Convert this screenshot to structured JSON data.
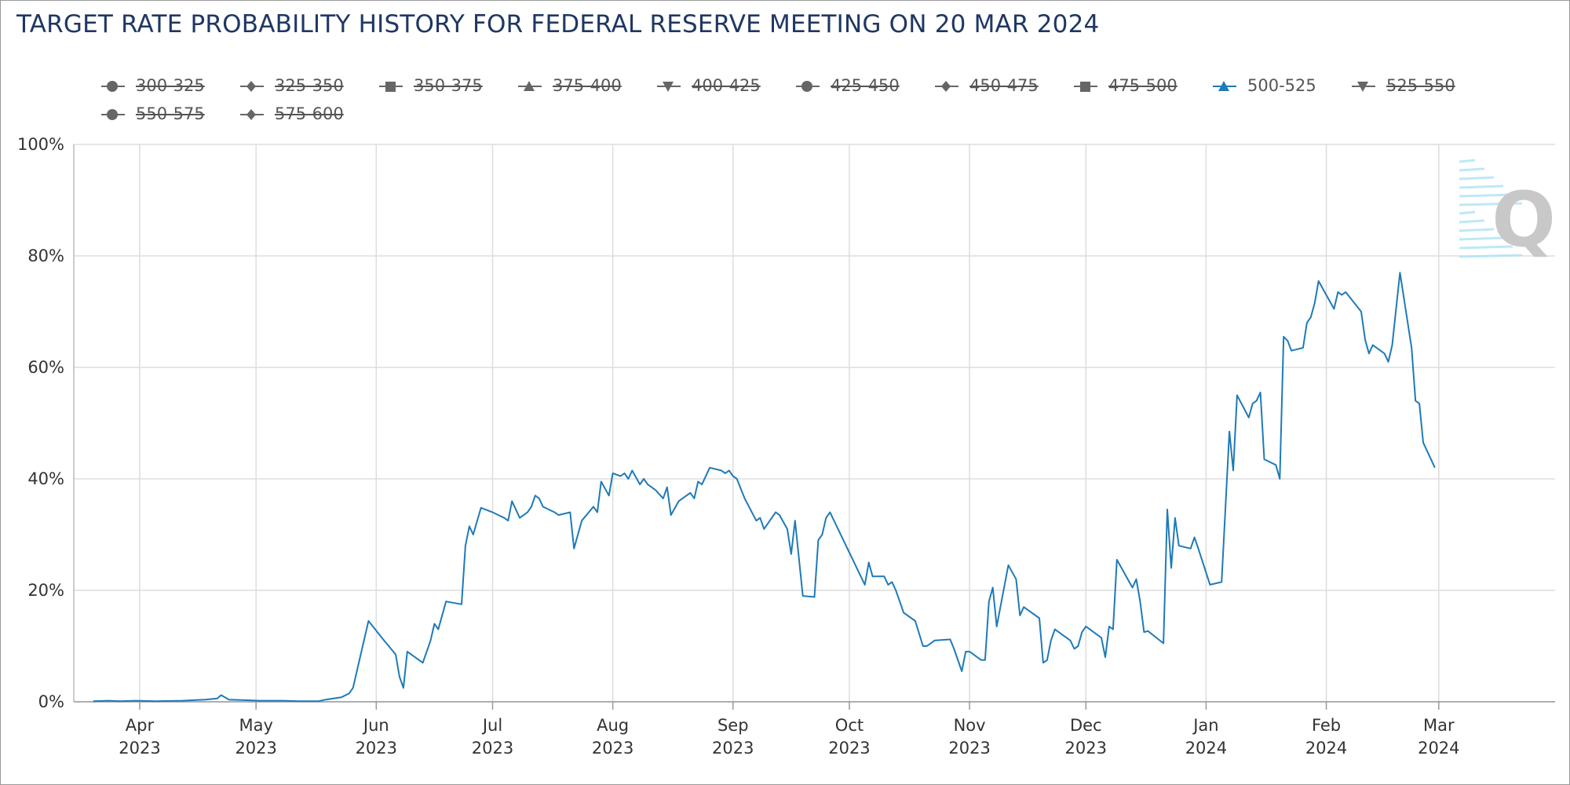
{
  "colors": {
    "title": "#1f3763",
    "series_active": "#1f7ab8",
    "legend_inactive": "#666666",
    "grid": "#dddddd",
    "watermark_arrows": "#aee3f5",
    "watermark_letter": "#c8c8c8"
  },
  "watermark": {
    "letter": "Q",
    "icon": "quikstrike-q-logo"
  },
  "legend": [
    {
      "label": "300-325",
      "marker": "circle",
      "active": false
    },
    {
      "label": "325-350",
      "marker": "diamond",
      "active": false
    },
    {
      "label": "350-375",
      "marker": "square",
      "active": false
    },
    {
      "label": "375-400",
      "marker": "triangle",
      "active": false
    },
    {
      "label": "400-425",
      "marker": "triangle-down",
      "active": false
    },
    {
      "label": "425-450",
      "marker": "circle",
      "active": false
    },
    {
      "label": "450-475",
      "marker": "diamond",
      "active": false
    },
    {
      "label": "475-500",
      "marker": "square",
      "active": false
    },
    {
      "label": "500-525",
      "marker": "triangle",
      "active": true
    },
    {
      "label": "525-550",
      "marker": "triangle-down",
      "active": false
    },
    {
      "label": "550-575",
      "marker": "circle",
      "active": false
    },
    {
      "label": "575-600",
      "marker": "diamond",
      "active": false
    }
  ],
  "chart_data": {
    "type": "line",
    "title": "TARGET RATE PROBABILITY HISTORY FOR FEDERAL RESERVE MEETING ON 20 MAR 2024",
    "xlabel": "",
    "ylabel": "",
    "ylim": [
      0,
      100
    ],
    "xlim": [
      "2023-03-15",
      "2024-03-31"
    ],
    "yticks": [
      0,
      20,
      40,
      60,
      80,
      100
    ],
    "ytick_labels": [
      "0%",
      "20%",
      "40%",
      "60%",
      "80%",
      "100%"
    ],
    "xticks": [
      {
        "date": "2023-04-01",
        "month": "Apr",
        "year": "2023"
      },
      {
        "date": "2023-05-01",
        "month": "May",
        "year": "2023"
      },
      {
        "date": "2023-06-01",
        "month": "Jun",
        "year": "2023"
      },
      {
        "date": "2023-07-01",
        "month": "Jul",
        "year": "2023"
      },
      {
        "date": "2023-08-01",
        "month": "Aug",
        "year": "2023"
      },
      {
        "date": "2023-09-01",
        "month": "Sep",
        "year": "2023"
      },
      {
        "date": "2023-10-01",
        "month": "Oct",
        "year": "2023"
      },
      {
        "date": "2023-11-01",
        "month": "Nov",
        "year": "2023"
      },
      {
        "date": "2023-12-01",
        "month": "Dec",
        "year": "2023"
      },
      {
        "date": "2024-01-01",
        "month": "Jan",
        "year": "2024"
      },
      {
        "date": "2024-02-01",
        "month": "Feb",
        "year": "2024"
      },
      {
        "date": "2024-03-01",
        "month": "Mar",
        "year": "2024"
      }
    ],
    "grid": true,
    "legend_position": "top",
    "series": [
      {
        "name": "500-525",
        "points": [
          [
            "2023-03-20",
            0.1
          ],
          [
            "2023-03-24",
            0.2
          ],
          [
            "2023-03-27",
            0.1
          ],
          [
            "2023-03-31",
            0.2
          ],
          [
            "2023-04-05",
            0.1
          ],
          [
            "2023-04-12",
            0.2
          ],
          [
            "2023-04-18",
            0.4
          ],
          [
            "2023-04-21",
            0.6
          ],
          [
            "2023-04-22",
            1.2
          ],
          [
            "2023-04-24",
            0.4
          ],
          [
            "2023-04-28",
            0.3
          ],
          [
            "2023-05-02",
            0.2
          ],
          [
            "2023-05-08",
            0.2
          ],
          [
            "2023-05-12",
            0.1
          ],
          [
            "2023-05-17",
            0.1
          ],
          [
            "2023-05-19",
            0.4
          ],
          [
            "2023-05-23",
            0.8
          ],
          [
            "2023-05-25",
            1.5
          ],
          [
            "2023-05-26",
            2.5
          ],
          [
            "2023-05-30",
            14.5
          ],
          [
            "2023-06-03",
            11.0
          ],
          [
            "2023-06-06",
            8.5
          ],
          [
            "2023-06-07",
            4.5
          ],
          [
            "2023-06-08",
            2.5
          ],
          [
            "2023-06-09",
            9.0
          ],
          [
            "2023-06-13",
            7.0
          ],
          [
            "2023-06-15",
            11.0
          ],
          [
            "2023-06-16",
            14.0
          ],
          [
            "2023-06-17",
            13.0
          ],
          [
            "2023-06-19",
            18.0
          ],
          [
            "2023-06-23",
            17.5
          ],
          [
            "2023-06-24",
            28.0
          ],
          [
            "2023-06-25",
            31.5
          ],
          [
            "2023-06-26",
            30.0
          ],
          [
            "2023-06-28",
            34.8
          ],
          [
            "2023-07-01",
            34.0
          ],
          [
            "2023-07-04",
            33.0
          ],
          [
            "2023-07-05",
            32.5
          ],
          [
            "2023-07-06",
            36.0
          ],
          [
            "2023-07-08",
            33.0
          ],
          [
            "2023-07-10",
            34.0
          ],
          [
            "2023-07-11",
            35.0
          ],
          [
            "2023-07-12",
            37.0
          ],
          [
            "2023-07-13",
            36.5
          ],
          [
            "2023-07-14",
            35.0
          ],
          [
            "2023-07-17",
            34.0
          ],
          [
            "2023-07-18",
            33.5
          ],
          [
            "2023-07-21",
            34.0
          ],
          [
            "2023-07-22",
            27.5
          ],
          [
            "2023-07-24",
            32.5
          ],
          [
            "2023-07-27",
            35.0
          ],
          [
            "2023-07-28",
            34.0
          ],
          [
            "2023-07-29",
            39.5
          ],
          [
            "2023-07-31",
            37.0
          ],
          [
            "2023-08-01",
            41.0
          ],
          [
            "2023-08-03",
            40.5
          ],
          [
            "2023-08-04",
            41.0
          ],
          [
            "2023-08-05",
            40.0
          ],
          [
            "2023-08-06",
            41.5
          ],
          [
            "2023-08-08",
            39.0
          ],
          [
            "2023-08-09",
            40.0
          ],
          [
            "2023-08-10",
            39.0
          ],
          [
            "2023-08-12",
            38.0
          ],
          [
            "2023-08-14",
            36.5
          ],
          [
            "2023-08-15",
            38.5
          ],
          [
            "2023-08-16",
            33.5
          ],
          [
            "2023-08-18",
            36.0
          ],
          [
            "2023-08-21",
            37.5
          ],
          [
            "2023-08-22",
            36.5
          ],
          [
            "2023-08-23",
            39.5
          ],
          [
            "2023-08-24",
            39.0
          ],
          [
            "2023-08-26",
            42.0
          ],
          [
            "2023-08-29",
            41.5
          ],
          [
            "2023-08-30",
            41.0
          ],
          [
            "2023-08-31",
            41.5
          ],
          [
            "2023-09-01",
            40.5
          ],
          [
            "2023-09-02",
            40.0
          ],
          [
            "2023-09-04",
            36.5
          ],
          [
            "2023-09-07",
            32.5
          ],
          [
            "2023-09-08",
            33.0
          ],
          [
            "2023-09-09",
            31.0
          ],
          [
            "2023-09-10",
            32.0
          ],
          [
            "2023-09-12",
            34.0
          ],
          [
            "2023-09-13",
            33.5
          ],
          [
            "2023-09-15",
            31.0
          ],
          [
            "2023-09-16",
            26.5
          ],
          [
            "2023-09-17",
            32.5
          ],
          [
            "2023-09-19",
            19.0
          ],
          [
            "2023-09-22",
            18.8
          ],
          [
            "2023-09-23",
            29.0
          ],
          [
            "2023-09-24",
            30.0
          ],
          [
            "2023-09-25",
            33.0
          ],
          [
            "2023-09-26",
            34.0
          ],
          [
            "2023-10-05",
            21.0
          ],
          [
            "2023-10-06",
            25.0
          ],
          [
            "2023-10-07",
            22.5
          ],
          [
            "2023-10-10",
            22.5
          ],
          [
            "2023-10-11",
            21.0
          ],
          [
            "2023-10-12",
            21.5
          ],
          [
            "2023-10-13",
            20.0
          ],
          [
            "2023-10-15",
            16.0
          ],
          [
            "2023-10-18",
            14.5
          ],
          [
            "2023-10-20",
            10.0
          ],
          [
            "2023-10-21",
            10.0
          ],
          [
            "2023-10-23",
            11.0
          ],
          [
            "2023-10-27",
            11.2
          ],
          [
            "2023-10-28",
            9.5
          ],
          [
            "2023-10-30",
            5.5
          ],
          [
            "2023-10-31",
            9.0
          ],
          [
            "2023-11-01",
            9.0
          ],
          [
            "2023-11-04",
            7.5
          ],
          [
            "2023-11-05",
            7.5
          ],
          [
            "2023-11-06",
            18.0
          ],
          [
            "2023-11-07",
            20.5
          ],
          [
            "2023-11-08",
            13.5
          ],
          [
            "2023-11-11",
            24.5
          ],
          [
            "2023-11-13",
            22.0
          ],
          [
            "2023-11-14",
            15.5
          ],
          [
            "2023-11-15",
            17.0
          ],
          [
            "2023-11-19",
            15.0
          ],
          [
            "2023-11-20",
            7.0
          ],
          [
            "2023-11-21",
            7.5
          ],
          [
            "2023-11-22",
            11.0
          ],
          [
            "2023-11-23",
            13.0
          ],
          [
            "2023-11-27",
            11.0
          ],
          [
            "2023-11-28",
            9.5
          ],
          [
            "2023-11-29",
            10.0
          ],
          [
            "2023-11-30",
            12.5
          ],
          [
            "2023-12-01",
            13.5
          ],
          [
            "2023-12-05",
            11.5
          ],
          [
            "2023-12-06",
            8.0
          ],
          [
            "2023-12-07",
            13.5
          ],
          [
            "2023-12-08",
            13.0
          ],
          [
            "2023-12-09",
            25.5
          ],
          [
            "2023-12-13",
            20.5
          ],
          [
            "2023-12-14",
            22.0
          ],
          [
            "2023-12-15",
            18.0
          ],
          [
            "2023-12-16",
            12.5
          ],
          [
            "2023-12-17",
            12.7
          ],
          [
            "2023-12-21",
            10.5
          ],
          [
            "2023-12-22",
            34.5
          ],
          [
            "2023-12-23",
            24.0
          ],
          [
            "2023-12-24",
            33.0
          ],
          [
            "2023-12-25",
            28.0
          ],
          [
            "2023-12-28",
            27.5
          ],
          [
            "2023-12-29",
            29.5
          ],
          [
            "2023-12-30",
            27.5
          ],
          [
            "2024-01-02",
            21.0
          ],
          [
            "2024-01-05",
            21.5
          ],
          [
            "2024-01-07",
            48.5
          ],
          [
            "2024-01-08",
            41.5
          ],
          [
            "2024-01-09",
            55.0
          ],
          [
            "2024-01-12",
            51.0
          ],
          [
            "2024-01-13",
            53.5
          ],
          [
            "2024-01-14",
            54.0
          ],
          [
            "2024-01-15",
            55.5
          ],
          [
            "2024-01-16",
            43.5
          ],
          [
            "2024-01-19",
            42.5
          ],
          [
            "2024-01-20",
            40.0
          ],
          [
            "2024-01-21",
            65.5
          ],
          [
            "2024-01-22",
            64.8
          ],
          [
            "2024-01-23",
            63.0
          ],
          [
            "2024-01-26",
            63.5
          ],
          [
            "2024-01-27",
            68.0
          ],
          [
            "2024-01-28",
            69.0
          ],
          [
            "2024-01-29",
            71.5
          ],
          [
            "2024-01-30",
            75.5
          ],
          [
            "2024-02-03",
            70.5
          ],
          [
            "2024-02-04",
            73.5
          ],
          [
            "2024-02-05",
            73.0
          ],
          [
            "2024-02-06",
            73.5
          ],
          [
            "2024-02-10",
            70.0
          ],
          [
            "2024-02-11",
            65.0
          ],
          [
            "2024-02-12",
            62.5
          ],
          [
            "2024-02-13",
            64.0
          ],
          [
            "2024-02-16",
            62.5
          ],
          [
            "2024-02-17",
            61.0
          ],
          [
            "2024-02-18",
            64.0
          ],
          [
            "2024-02-20",
            77.0
          ],
          [
            "2024-02-23",
            63.5
          ],
          [
            "2024-02-24",
            54.0
          ],
          [
            "2024-02-25",
            53.5
          ],
          [
            "2024-02-26",
            46.5
          ],
          [
            "2024-02-29",
            42.0
          ]
        ]
      }
    ]
  }
}
